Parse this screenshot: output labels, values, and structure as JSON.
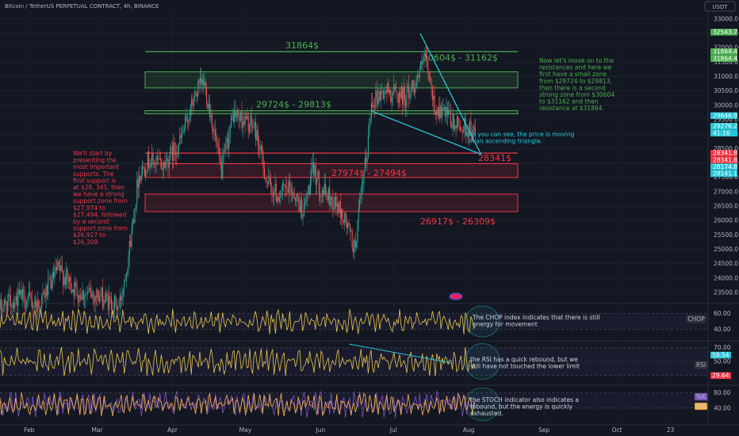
{
  "header": {
    "symbol_title": "Bitcoin / TetherUS PERPETUAL CONTRACT, 4h, BINANCE",
    "currency": "USDT"
  },
  "colors": {
    "background": "#131722",
    "green": "#4caf50",
    "red": "#f23645",
    "cyan": "#26c6da",
    "candle_up": "#26a69a",
    "candle_down": "#ef5350",
    "indicator_line": "#e6c84a",
    "stoch_k": "#7e57c2",
    "stoch_d": "#ffb74d"
  },
  "chart_data": {
    "type": "candlestick",
    "price_axis": {
      "ylim": [
        22900,
        33100
      ],
      "ticks": [
        "33000.0",
        "32500.0",
        "32000.0",
        "31500.0",
        "31000.0",
        "30500.0",
        "30000.0",
        "29500.0",
        "29000.0",
        "28500.0",
        "28000.0",
        "27500.0",
        "27000.0",
        "26500.0",
        "26000.0",
        "25500.0",
        "25000.0",
        "24500.0",
        "24000.0",
        "23500.0"
      ],
      "tick_values": [
        33000,
        32500,
        32000,
        31500,
        31000,
        30500,
        30000,
        29500,
        29000,
        28500,
        28000,
        27500,
        27000,
        26500,
        26000,
        25500,
        25000,
        24500,
        24000,
        23500
      ]
    },
    "x_axis": {
      "labels": [
        "Feb",
        "Mar",
        "Apr",
        "May",
        "Jun",
        "Jul",
        "Aug",
        "Sep",
        "Oct",
        "23"
      ]
    },
    "price_path": [
      [
        "Jan 20",
        22950
      ],
      [
        "Jan 28",
        23350
      ],
      [
        "Feb 5",
        23050
      ],
      [
        "Feb 13",
        24300
      ],
      [
        "Feb 21",
        23500
      ],
      [
        "Mar 1",
        23400
      ],
      [
        "Mar 10",
        22980
      ],
      [
        "Mar 14",
        24850
      ],
      [
        "Mar 18",
        27550
      ],
      [
        "Mar 22",
        28100
      ],
      [
        "Mar 28",
        27900
      ],
      [
        "Apr 4",
        28700
      ],
      [
        "Apr 11",
        30500
      ],
      [
        "Apr 14",
        30800
      ],
      [
        "Apr 17",
        29600
      ],
      [
        "Apr 21",
        27650
      ],
      [
        "Apr 26",
        29700
      ],
      [
        "Apr 30",
        29500
      ],
      [
        "May 5",
        29200
      ],
      [
        "May 10",
        27300
      ],
      [
        "May 14",
        26900
      ],
      [
        "May 20",
        27100
      ],
      [
        "May 25",
        26300
      ],
      [
        "May 29",
        27800
      ],
      [
        "Jun 1",
        27100
      ],
      [
        "Jun 8",
        26500
      ],
      [
        "Jun 12",
        25800
      ],
      [
        "Jun 15",
        25000
      ],
      [
        "Jun 17",
        26400
      ],
      [
        "Jun 20",
        28300
      ],
      [
        "Jun 22",
        30200
      ],
      [
        "Jun 28",
        30500
      ],
      [
        "Jul 6",
        30300
      ],
      [
        "Jul 10",
        30800
      ],
      [
        "Jul 14",
        31600
      ],
      [
        "Jul 18",
        29900
      ],
      [
        "Jul 22",
        29700
      ],
      [
        "Jul 26",
        29300
      ],
      [
        "Aug 1",
        29200
      ],
      [
        "Aug 4",
        28900
      ]
    ],
    "price_labels": [
      {
        "text": "32543.7",
        "value": 32543.7,
        "color": "#4caf50"
      },
      {
        "text": "31864.4",
        "value": 31864.4,
        "color": "#4caf50"
      },
      {
        "text": "31864.4",
        "value": 31864.4,
        "color": "#4caf50"
      },
      {
        "text": "29646.9",
        "value": 29646.9,
        "color": "#26c6da"
      },
      {
        "text": "29276.2",
        "value": 29276.2,
        "color": "#26c6da"
      },
      {
        "text": "41:16",
        "value": 29276.2,
        "color": "#26c6da"
      },
      {
        "text": "28341.8",
        "value": 28341.8,
        "color": "#f23645"
      },
      {
        "text": "28341.8",
        "value": 28341.8,
        "color": "#f23645"
      },
      {
        "text": "28174.8",
        "value": 28174.8,
        "color": "#26c6da"
      },
      {
        "text": "28141.1",
        "value": 28141.1,
        "color": "#26c6da"
      }
    ],
    "zones": [
      {
        "label": "31864$",
        "type": "line",
        "value": 31864,
        "color": "#4caf50"
      },
      {
        "label": "30604$ - 31162$",
        "type": "box",
        "low": 30604,
        "high": 31162,
        "color": "#4caf50"
      },
      {
        "label": "29724$ - 29813$",
        "type": "box",
        "low": 29724,
        "high": 29813,
        "color": "#4caf50"
      },
      {
        "label": "28341$",
        "type": "line",
        "value": 28341,
        "color": "#f23645"
      },
      {
        "label": "",
        "type": "box",
        "low": 27494,
        "high": 27974,
        "color": "#f23645"
      },
      {
        "label": "27974$ - 27494$",
        "type": "text",
        "value": 27650,
        "color": "#f23645"
      },
      {
        "label": "26917$ - 26309$",
        "type": "box",
        "low": 26309,
        "high": 26917,
        "color": "#f23645"
      }
    ],
    "triangle": {
      "upper": [
        [
          "Jul 12",
          32500
        ],
        [
          "Aug 6",
          28300
        ]
      ],
      "lower": [
        [
          "Jun 22",
          29800
        ],
        [
          "Aug 6",
          28300
        ]
      ]
    },
    "indicators": [
      {
        "name": "CHOP",
        "ticks": [
          "60.00",
          "40.00"
        ],
        "tick_values": [
          60,
          40
        ],
        "ylim": [
          28,
          72
        ],
        "badge": "CHOP"
      },
      {
        "name": "RSI",
        "ticks": [
          "70.00",
          "50.00",
          "30.00"
        ],
        "tick_values": [
          70,
          50,
          30
        ],
        "ylim": [
          20,
          80
        ],
        "badge": "RSI",
        "value_labels": [
          "59.54",
          "29.64"
        ]
      },
      {
        "name": "STOCH",
        "ticks": [
          "80.00",
          "40.00"
        ],
        "tick_values": [
          80,
          40
        ],
        "ylim": [
          0,
          100
        ],
        "badges": [
          "%K",
          "%D"
        ]
      }
    ]
  },
  "annotations": {
    "resistance_note": "Now let's move on to the resistances and here we first have a small zone from $29724 to $29813, then there is a second strong zone from $30604 to $31162 and then resistance at $31864.",
    "support_note": "We'll start by presenting the most important supports. The first support is at $28, 341, then we have a strong support zone from $27,974 to $27,494, followed by a second support zone from $26,917 to $26,309.",
    "triangle_note": "As you can see, the price is moving in an ascending triangle.",
    "chop_note": "The CHOP index indicates that there is still energy for movement",
    "rsi_note": "the RSI has a quick rebound, but we still have not touched the lower limit",
    "stoch_note": "the STOCH indicator also indicates a rebound, but the energy is quickly exhausted."
  }
}
